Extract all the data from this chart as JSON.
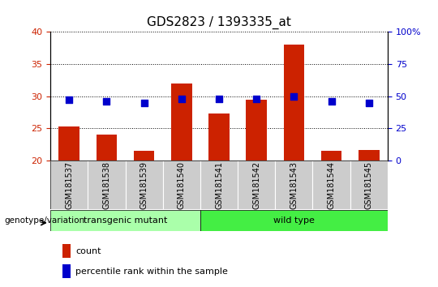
{
  "title": "GDS2823 / 1393335_at",
  "samples": [
    "GSM181537",
    "GSM181538",
    "GSM181539",
    "GSM181540",
    "GSM181541",
    "GSM181542",
    "GSM181543",
    "GSM181544",
    "GSM181545"
  ],
  "counts": [
    25.3,
    24.0,
    21.5,
    32.0,
    27.3,
    29.5,
    38.0,
    21.5,
    21.7
  ],
  "percentile_ranks": [
    47,
    46,
    45,
    48,
    48,
    48,
    50,
    46,
    45
  ],
  "ylim_left": [
    20,
    40
  ],
  "ylim_right": [
    0,
    100
  ],
  "yticks_left": [
    20,
    25,
    30,
    35,
    40
  ],
  "yticks_right": [
    0,
    25,
    50,
    75,
    100
  ],
  "ytick_labels_right": [
    "0",
    "25",
    "50",
    "75",
    "100%"
  ],
  "bar_color": "#cc2200",
  "dot_color": "#0000cc",
  "group1_label": "transgenic mutant",
  "group1_color": "#aaffaa",
  "group2_label": "wild type",
  "group2_color": "#44ee44",
  "genotype_label": "genotype/variation",
  "legend_count_label": "count",
  "legend_percentile_label": "percentile rank within the sample",
  "bar_bottom": 20,
  "dot_size": 28,
  "xlabel_bg_color": "#cccccc",
  "grid_linestyle": "dotted"
}
